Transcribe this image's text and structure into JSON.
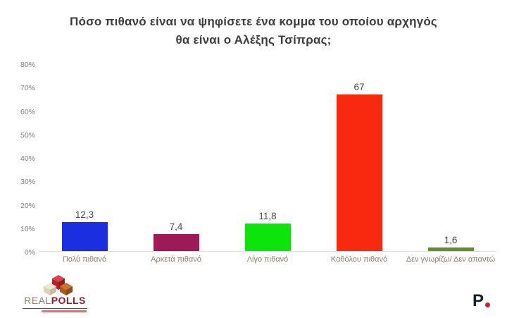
{
  "title": {
    "line1": "Πόσο πιθανό είναι να ψηφίσετε ένα κομμα του οποίου αρχηγός",
    "line2": "θα είναι ο Αλέξης Τσίπρας;"
  },
  "chart_data": {
    "type": "bar",
    "title": "Πόσο πιθανό είναι να ψηφίσετε ένα κομμα του οποίου αρχηγός θα είναι ο Αλέξης Τσίπρας;",
    "categories": [
      "Πολύ πιθανό",
      "Αρκετά πιθανό",
      "Λίγο πιθανό",
      "Καθόλου πιθανό",
      "Δεν γνωρίζω/ Δεν απαντώ"
    ],
    "values": [
      12.3,
      7.4,
      11.8,
      67,
      1.6
    ],
    "value_labels": [
      "12,3",
      "7,4",
      "11,8",
      "67",
      "1,6"
    ],
    "bar_colors": [
      "#1c2fe0",
      "#9d1a56",
      "#0ce40c",
      "#f9290f",
      "#638c2a"
    ],
    "xlabel": "",
    "ylabel": "",
    "ylim": [
      0,
      80
    ],
    "y_ticks": [
      "0%",
      "10%",
      "20%",
      "30%",
      "40%",
      "50%",
      "60%",
      "70%",
      "80%"
    ],
    "grid": false,
    "legend": "none",
    "background": "#ffffff"
  },
  "footer": {
    "realpolls": {
      "brand_real": "REAL",
      "brand_polls": "POLLS"
    },
    "protagon": {
      "letter": "P"
    }
  },
  "colors": {
    "title_text": "#3d3d3d",
    "axis_text": "#7f7f7f",
    "category_text": "#8a8278",
    "value_text": "#4c4c4c",
    "baseline": "#d9d9d9",
    "realpolls_red": "#8d1f2d",
    "protagon_dark": "#161d2b",
    "protagon_red": "#cc2027"
  }
}
